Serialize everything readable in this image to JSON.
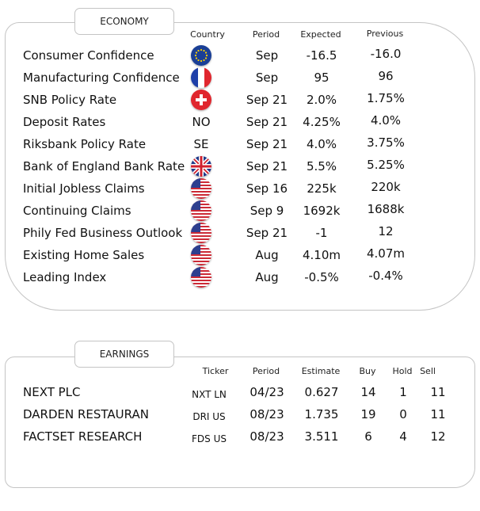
{
  "economy": {
    "tab_label": "ECONOMY",
    "headers": {
      "country": "Country",
      "period": "Period",
      "expected": "Expected",
      "previous": "Previous"
    },
    "rows": [
      {
        "name": "Consumer Confidence",
        "country": "",
        "flag": "eu-flag-icon",
        "period": "Sep",
        "expected": "-16.5",
        "previous": "-16.0"
      },
      {
        "name": "Manufacturing Confidence",
        "country": "",
        "flag": "france-flag-icon",
        "period": "Sep",
        "expected": "95",
        "previous": "96"
      },
      {
        "name": "SNB Policy Rate",
        "country": "",
        "flag": "switzerland-flag-icon",
        "period": "Sep 21",
        "expected": "2.0%",
        "previous": "1.75%"
      },
      {
        "name": "Deposit Rates",
        "country": "NO",
        "flag": "",
        "period": "Sep 21",
        "expected": "4.25%",
        "previous": "4.0%"
      },
      {
        "name": "Riksbank Policy Rate",
        "country": "SE",
        "flag": "",
        "period": "Sep 21",
        "expected": "4.0%",
        "previous": "3.75%"
      },
      {
        "name": "Bank of England Bank Rate",
        "country": "",
        "flag": "uk-flag-icon",
        "period": "Sep 21",
        "expected": "5.5%",
        "previous": "5.25%"
      },
      {
        "name": "Initial Jobless Claims",
        "country": "",
        "flag": "us-flag-icon",
        "period": "Sep 16",
        "expected": "225k",
        "previous": "220k"
      },
      {
        "name": "Continuing Claims",
        "country": "",
        "flag": "us-flag-icon",
        "period": "Sep 9",
        "expected": "1692k",
        "previous": "1688k"
      },
      {
        "name": "Phily Fed Business Outlook",
        "country": "",
        "flag": "us-flag-icon",
        "period": "Sep 21",
        "expected": "-1",
        "previous": "12"
      },
      {
        "name": "Existing Home Sales",
        "country": "",
        "flag": "us-flag-icon",
        "period": "Aug",
        "expected": "4.10m",
        "previous": "4.07m"
      },
      {
        "name": "Leading Index",
        "country": "",
        "flag": "us-flag-icon",
        "period": "Aug",
        "expected": "-0.5%",
        "previous": "-0.4%"
      }
    ]
  },
  "earnings": {
    "tab_label": "EARNINGS",
    "headers": {
      "ticker": "Ticker",
      "period": "Period",
      "estimate": "Estimate",
      "buy": "Buy",
      "hold": "Hold",
      "sell": "Sell"
    },
    "rows": [
      {
        "name": "NEXT PLC",
        "ticker": "NXT LN",
        "period": "04/23",
        "estimate": "0.627",
        "buy": "14",
        "hold": "1",
        "sell": "11"
      },
      {
        "name": "DARDEN RESTAURAN",
        "ticker": "DRI US",
        "period": "08/23",
        "estimate": "1.735",
        "buy": "19",
        "hold": "0",
        "sell": "11"
      },
      {
        "name": "FACTSET RESEARCH",
        "ticker": "FDS US",
        "period": "08/23",
        "estimate": "3.511",
        "buy": "6",
        "hold": "4",
        "sell": "12"
      }
    ]
  },
  "colors": {
    "border": "#c4c4c4",
    "text": "#111111"
  }
}
